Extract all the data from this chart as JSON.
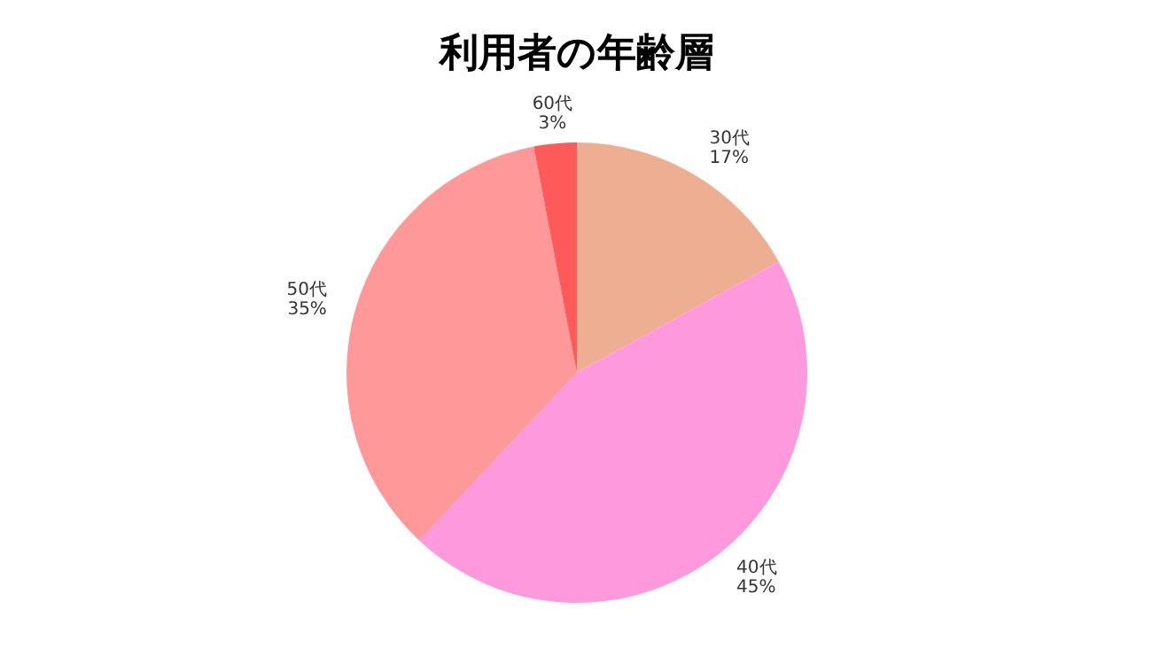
{
  "chart_data": {
    "type": "pie",
    "title": "利用者の年齢層",
    "categories": [
      "30代",
      "40代",
      "50代",
      "60代"
    ],
    "values": [
      17,
      45,
      35,
      3
    ],
    "value_labels": [
      "17%",
      "45%",
      "35%",
      "3%"
    ],
    "colors": [
      "#eeae92",
      "#ff99dd",
      "#ff9999",
      "#ff5a5a"
    ]
  }
}
